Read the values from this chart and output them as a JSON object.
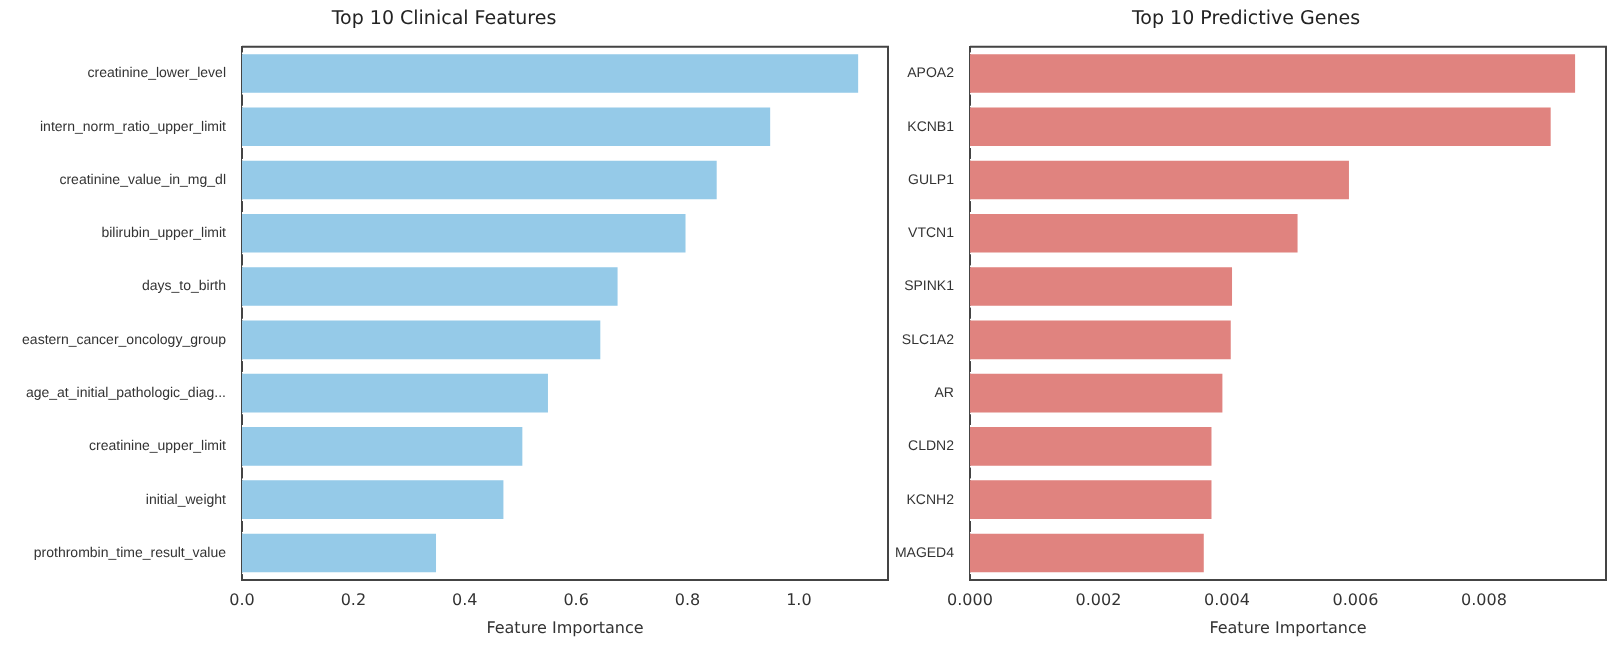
{
  "chart_data": [
    {
      "type": "bar",
      "orientation": "horizontal",
      "title": "Top 10 Clinical Features",
      "xlabel": "Feature Importance",
      "categories": [
        "creatinine_lower_level",
        "intern_norm_ratio_upper_limit",
        "creatinine_value_in_mg_dl",
        "bilirubin_upper_limit",
        "days_to_birth",
        "eastern_cancer_oncology_group",
        "age_at_initial_pathologic_diag...",
        "creatinine_upper_limit",
        "initial_weight",
        "prothrombin_time_result_value"
      ],
      "values": [
        1.11,
        0.952,
        0.856,
        0.8,
        0.678,
        0.647,
        0.553,
        0.507,
        0.473,
        0.352
      ],
      "color": "#95cae8",
      "xlim": [
        0,
        1.16
      ],
      "xticks": [
        {
          "value": 0,
          "label": "0.0"
        },
        0.2,
        0.4,
        0.6,
        0.8,
        {
          "value": 1,
          "label": "1.0"
        }
      ],
      "grid": false,
      "legend": false
    },
    {
      "type": "bar",
      "orientation": "horizontal",
      "title": "Top 10 Predictive Genes",
      "xlabel": "Feature Importance",
      "categories": [
        "APOA2",
        "KCNB1",
        "GULP1",
        "VTCN1",
        "SPINK1",
        "SLC1A2",
        "AR",
        "CLDN2",
        "KCNH2",
        "MAGED4"
      ],
      "values": [
        0.00945,
        0.00907,
        0.00593,
        0.00513,
        0.00411,
        0.00409,
        0.00396,
        0.00379,
        0.00379,
        0.00367
      ],
      "color": "#e0837f",
      "xlim": [
        0,
        0.0099
      ],
      "xticks": [
        {
          "value": 0,
          "label": "0.000"
        },
        {
          "value": 0.002,
          "label": "0.002"
        },
        {
          "value": 0.004,
          "label": "0.004"
        },
        {
          "value": 0.006,
          "label": "0.006"
        },
        {
          "value": 0.008,
          "label": "0.008"
        }
      ],
      "grid": false,
      "legend": false
    }
  ]
}
